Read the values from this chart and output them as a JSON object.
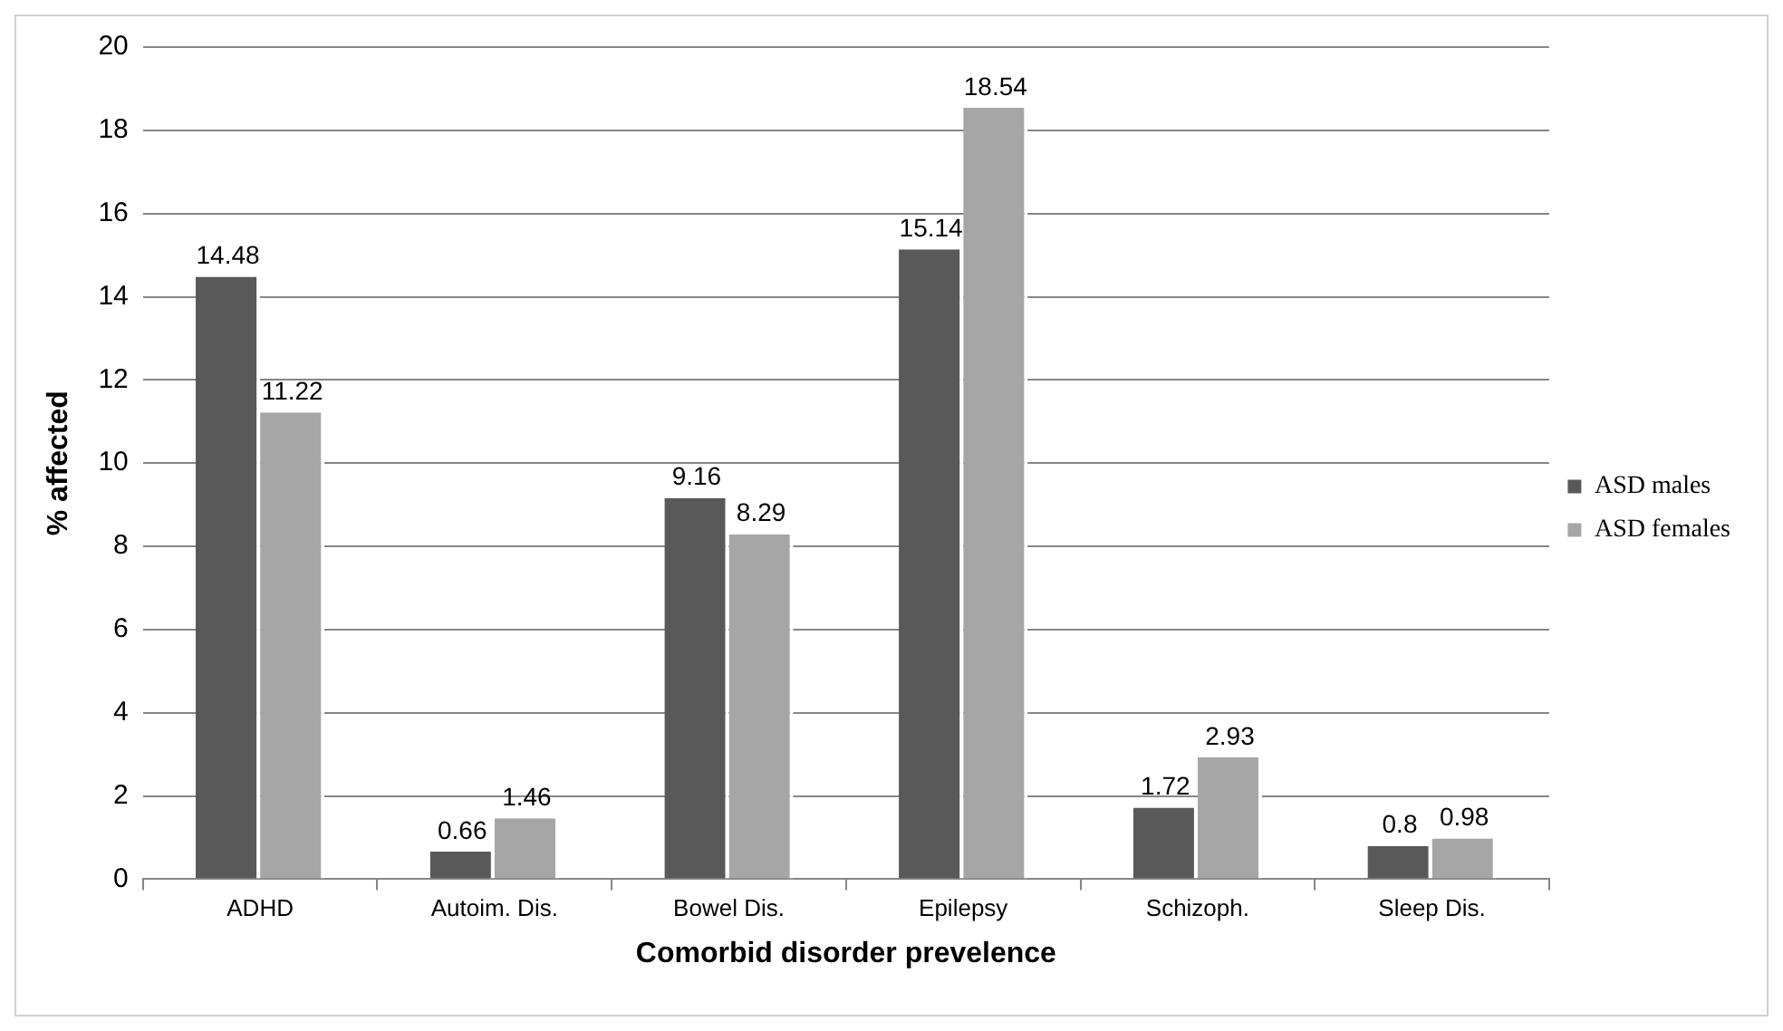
{
  "chart_data": {
    "type": "bar",
    "xlabel": "Comorbid disorder prevelence",
    "ylabel": "% affected",
    "categories": [
      "ADHD",
      "Autoim. Dis.",
      "Bowel Dis.",
      "Epilepsy",
      "Schizoph.",
      "Sleep Dis."
    ],
    "series": [
      {
        "name": "ASD males",
        "color": "#595959",
        "values": [
          14.48,
          0.66,
          9.16,
          15.14,
          1.72,
          0.8
        ]
      },
      {
        "name": "ASD females",
        "color": "#a6a6a6",
        "values": [
          11.22,
          1.46,
          8.29,
          18.54,
          2.93,
          0.98
        ]
      }
    ],
    "ylim": [
      0,
      20
    ],
    "yticks": [
      0,
      2,
      4,
      6,
      8,
      10,
      12,
      14,
      16,
      18,
      20
    ],
    "grid": "y",
    "legend": "right",
    "data_labels": true
  }
}
